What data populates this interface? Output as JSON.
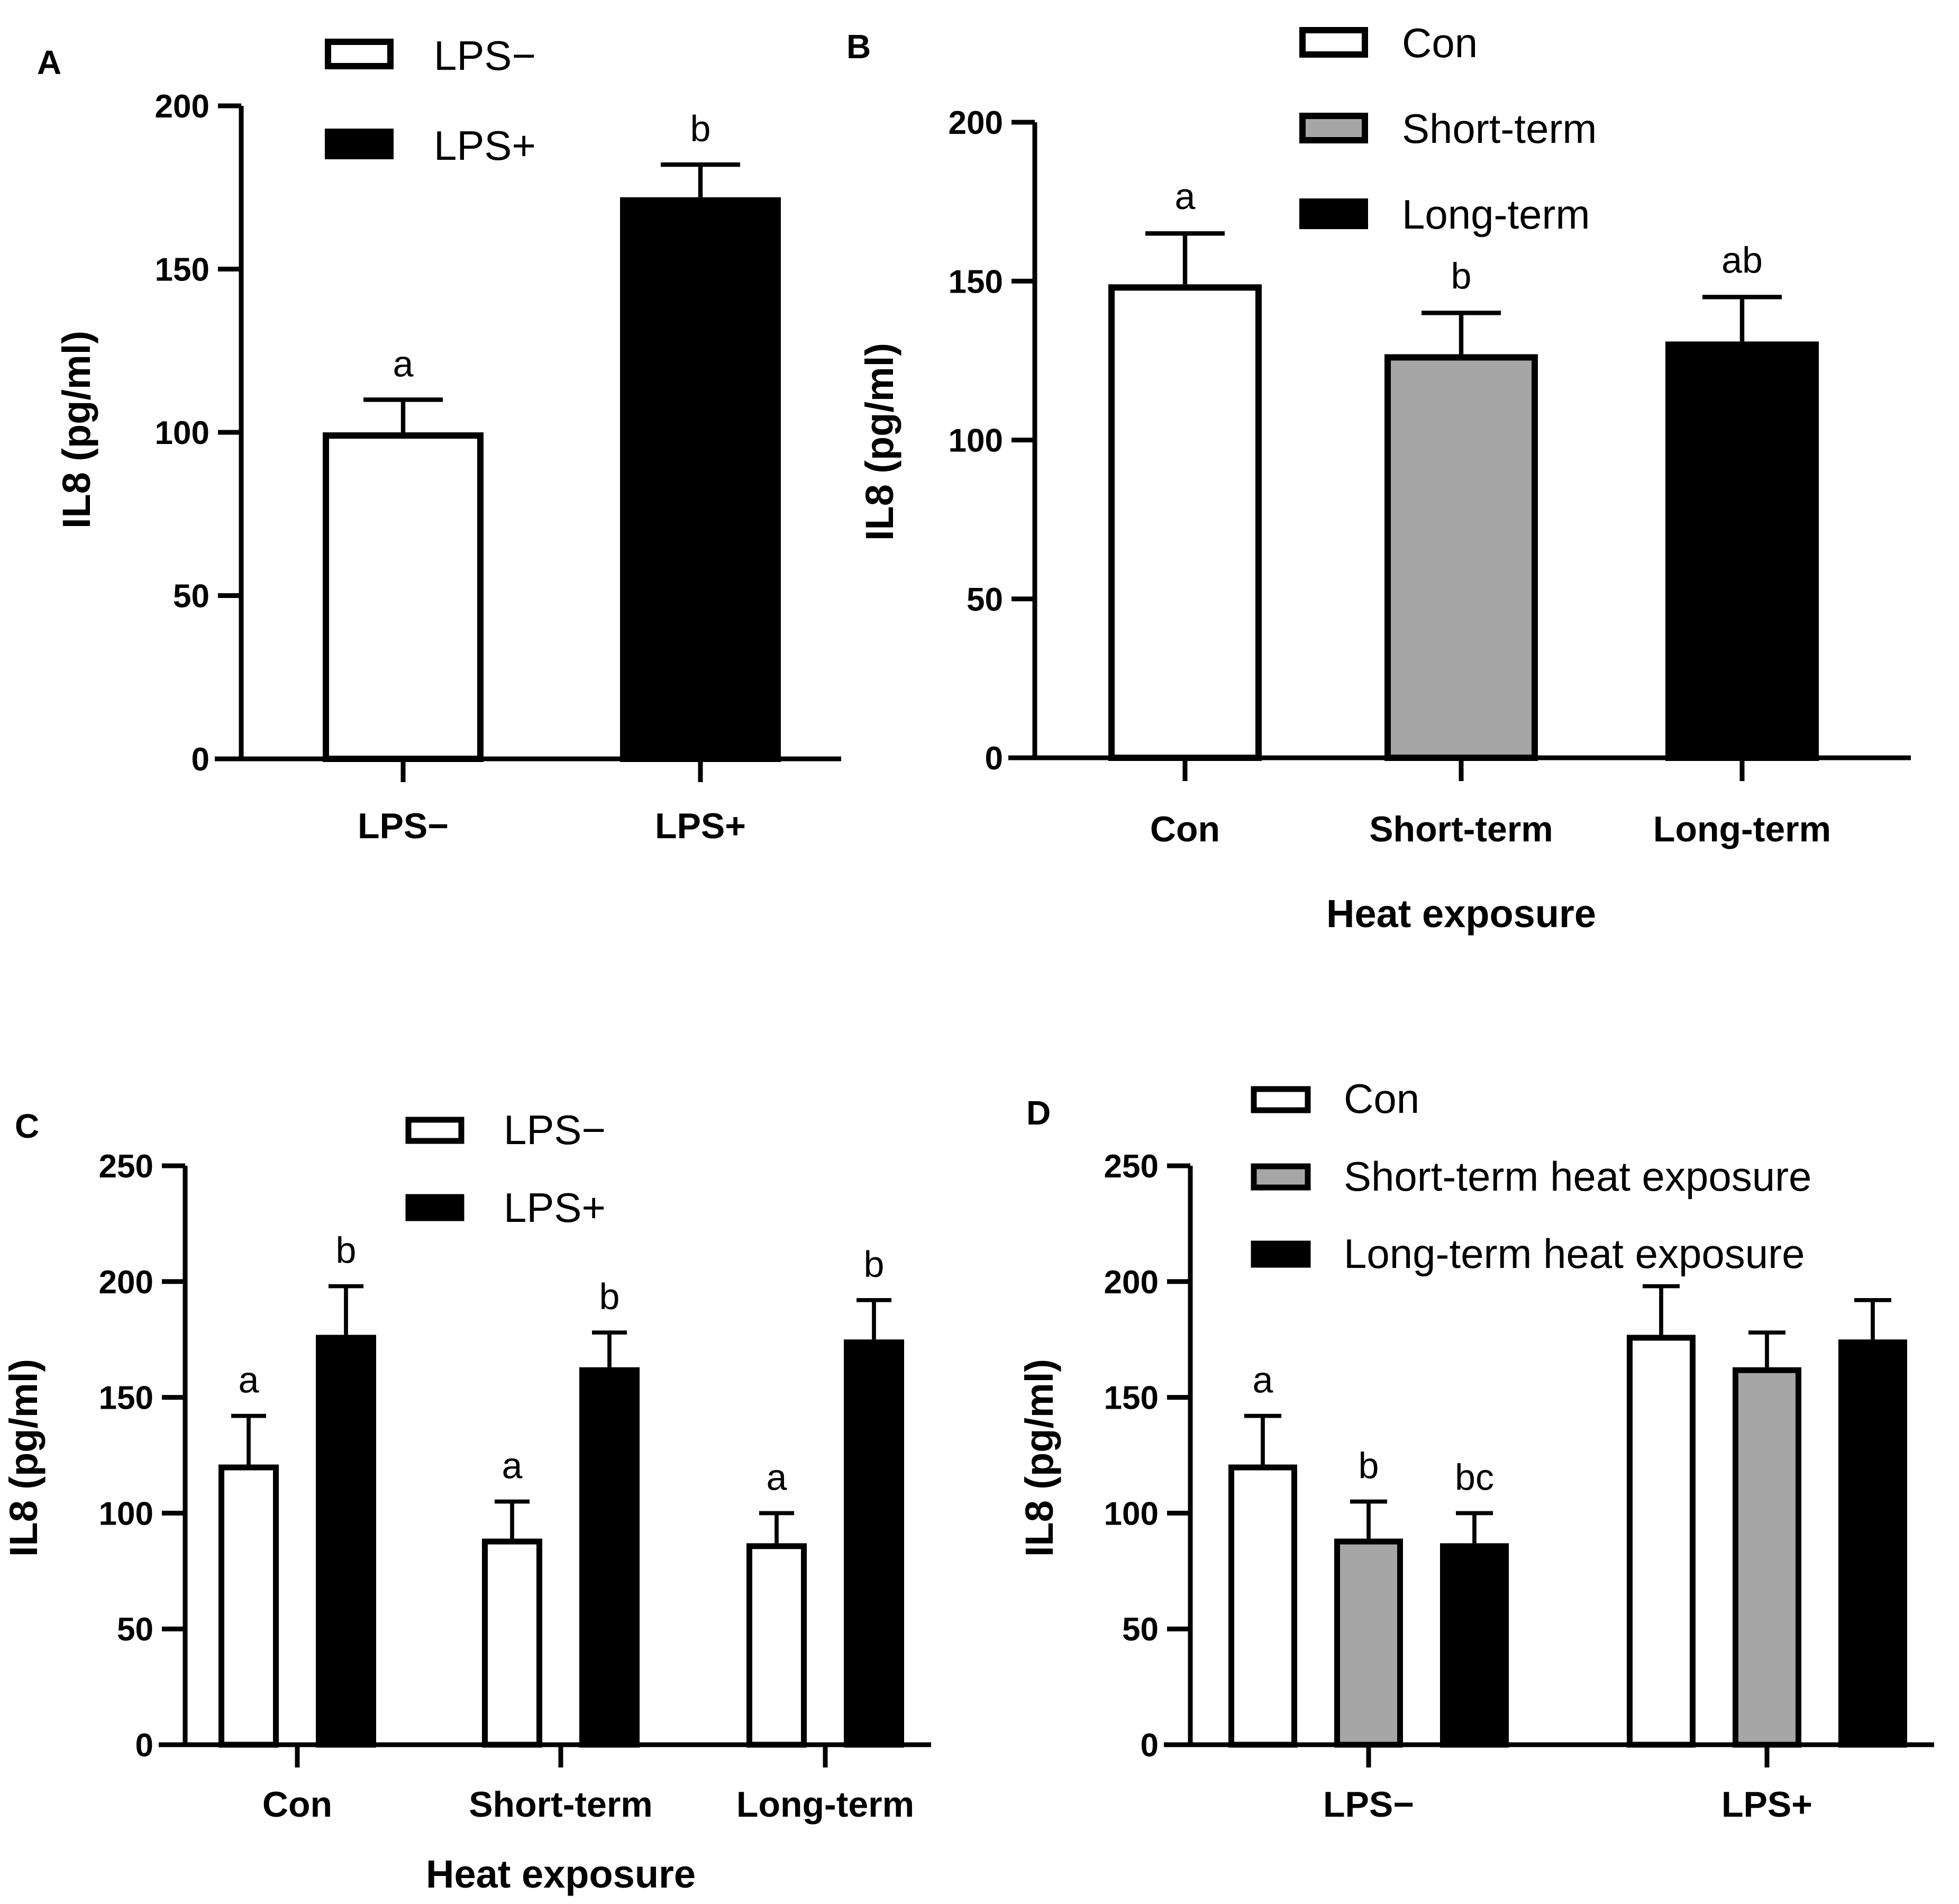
{
  "colors": {
    "white": "#ffffff",
    "gray": "#a6a6a6",
    "black": "#000000"
  },
  "chart_data": [
    {
      "panel": "A",
      "type": "bar",
      "ylabel": "IL8 (pg/ml)",
      "xlabel": "",
      "ylim": [
        0,
        200
      ],
      "yticks": [
        0,
        50,
        100,
        150,
        200
      ],
      "categories": [
        "LPS−",
        "LPS+"
      ],
      "legend": [
        {
          "label": "LPS−",
          "color": "#ffffff"
        },
        {
          "label": "LPS+",
          "color": "#000000"
        }
      ],
      "bars": [
        {
          "category": "LPS−",
          "value": 100,
          "error": 10,
          "color": "#ffffff",
          "letter": "a"
        },
        {
          "category": "LPS+",
          "value": 172,
          "error": 10,
          "color": "#000000",
          "letter": "b"
        }
      ]
    },
    {
      "panel": "B",
      "type": "bar",
      "ylabel": "IL8 (pg/ml)",
      "xlabel": "Heat exposure",
      "ylim": [
        0,
        200
      ],
      "yticks": [
        0,
        50,
        100,
        150,
        200
      ],
      "categories": [
        "Con",
        "Short-term",
        "Long-term"
      ],
      "legend": [
        {
          "label": "Con",
          "color": "#ffffff"
        },
        {
          "label": "Short-term",
          "color": "#a6a6a6"
        },
        {
          "label": "Long-term",
          "color": "#000000"
        }
      ],
      "bars": [
        {
          "category": "Con",
          "value": 149,
          "error": 16,
          "color": "#ffffff",
          "letter": "a"
        },
        {
          "category": "Short-term",
          "value": 127,
          "error": 13,
          "color": "#a6a6a6",
          "letter": "b"
        },
        {
          "category": "Long-term",
          "value": 131,
          "error": 14,
          "color": "#000000",
          "letter": "ab"
        }
      ]
    },
    {
      "panel": "C",
      "type": "bar",
      "ylabel": "IL8 (pg/ml)",
      "xlabel": "Heat exposure",
      "ylim": [
        0,
        250
      ],
      "yticks": [
        0,
        50,
        100,
        150,
        200,
        250
      ],
      "categories": [
        "Con",
        "Short-term",
        "Long-term"
      ],
      "legend": [
        {
          "label": "LPS−",
          "color": "#ffffff"
        },
        {
          "label": "LPS+",
          "color": "#000000"
        }
      ],
      "series": [
        {
          "name": "LPS−",
          "color": "#ffffff",
          "values": [
            121,
            89,
            87
          ],
          "errors": [
            21,
            16,
            13
          ],
          "letters": [
            "a",
            "a",
            "a"
          ]
        },
        {
          "name": "LPS+",
          "color": "#000000",
          "values": [
            177,
            163,
            175
          ],
          "errors": [
            21,
            15,
            17
          ],
          "letters": [
            "b",
            "b",
            "b"
          ]
        }
      ]
    },
    {
      "panel": "D",
      "type": "bar",
      "ylabel": "IL8 (pg/ml)",
      "xlabel": "",
      "ylim": [
        0,
        250
      ],
      "yticks": [
        0,
        50,
        100,
        150,
        200,
        250
      ],
      "categories": [
        "LPS−",
        "LPS+"
      ],
      "legend": [
        {
          "label": "Con",
          "color": "#ffffff"
        },
        {
          "label": "Short-term heat exposure",
          "color": "#a6a6a6"
        },
        {
          "label": "Long-term heat exposure",
          "color": "#000000"
        }
      ],
      "series": [
        {
          "name": "Con",
          "color": "#ffffff",
          "values": [
            121,
            177
          ],
          "errors": [
            21,
            21
          ],
          "letters": [
            "a",
            ""
          ]
        },
        {
          "name": "Short-term heat exposure",
          "color": "#a6a6a6",
          "values": [
            89,
            163
          ],
          "errors": [
            16,
            15
          ],
          "letters": [
            "b",
            ""
          ]
        },
        {
          "name": "Long-term heat exposure",
          "color": "#000000",
          "values": [
            87,
            175
          ],
          "errors": [
            13,
            17
          ],
          "letters": [
            "bc",
            ""
          ]
        }
      ]
    }
  ]
}
